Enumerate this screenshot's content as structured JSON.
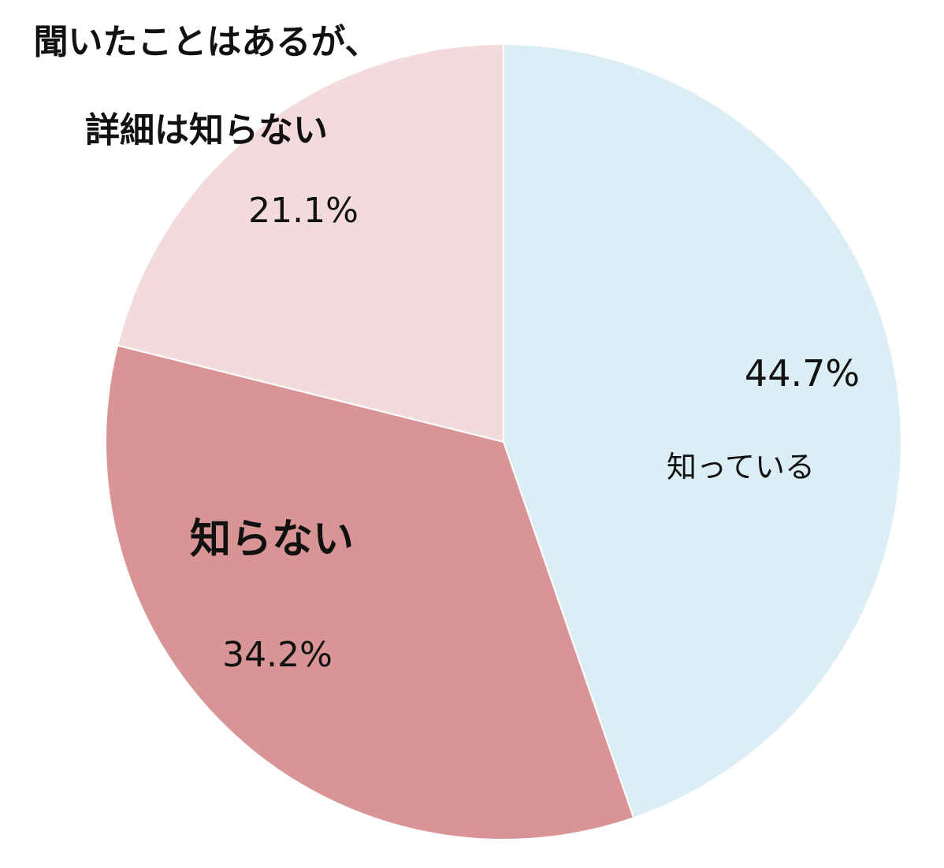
{
  "chart_data": {
    "type": "pie",
    "title": "",
    "slices": [
      {
        "label": "知っている",
        "label_lines": [
          "知っている"
        ],
        "value": 44.7,
        "value_label": "44.7%",
        "color": "#DCEEF5",
        "label_bold": false
      },
      {
        "label": "知らない",
        "label_lines": [
          "知らない"
        ],
        "value": 34.2,
        "value_label": "34.2%",
        "color": "#D99596",
        "label_bold": true
      },
      {
        "label": "聞いたことはあるが、詳細は知らない",
        "label_lines": [
          "聞いたことはあるが、",
          "詳細は知らない"
        ],
        "value": 21.1,
        "value_label": "21.1%",
        "color": "#F2DADD",
        "label_bold": true
      }
    ],
    "start_angle": "12 o'clock",
    "direction": "clockwise",
    "legend": "none"
  }
}
